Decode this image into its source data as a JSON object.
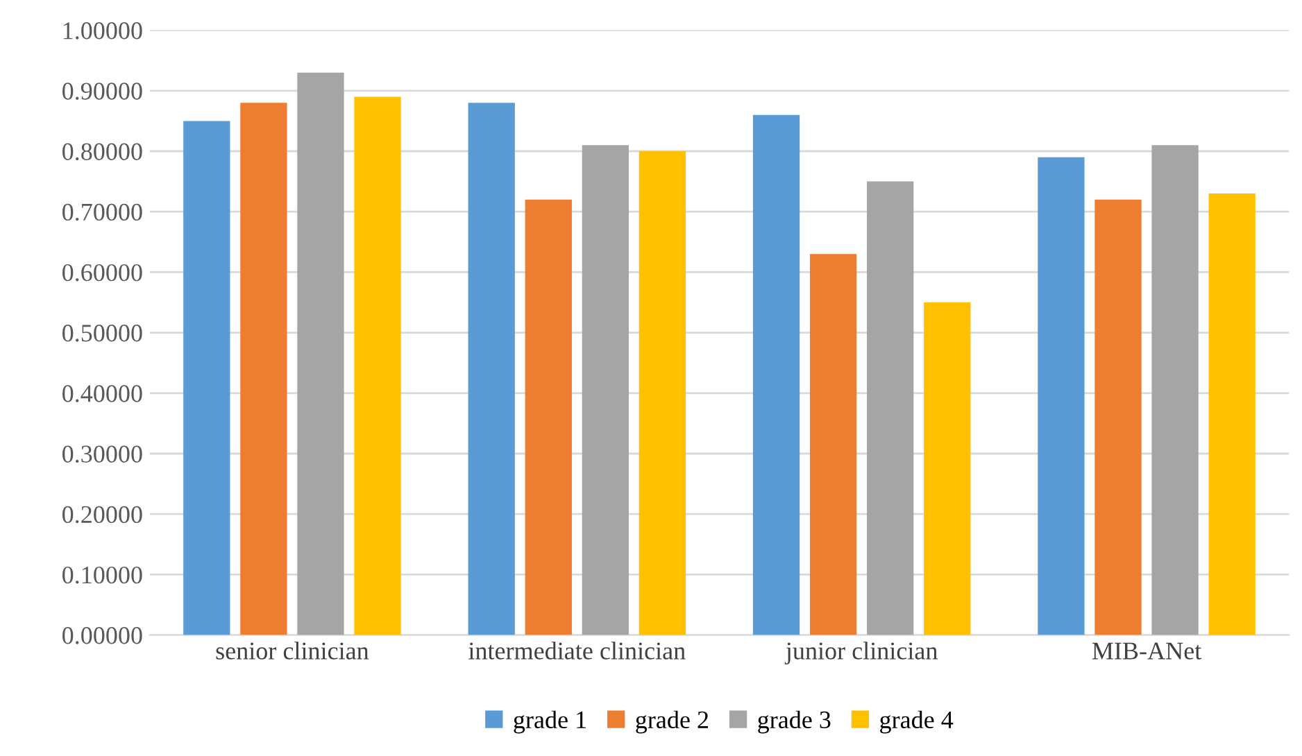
{
  "chart_data": {
    "type": "bar",
    "categories": [
      "senior clinician",
      "intermediate clinician",
      "junior clinician",
      "MIB-ANet"
    ],
    "series": [
      {
        "name": "grade 1",
        "color": "#5b9bd5",
        "values": [
          0.85,
          0.88,
          0.86,
          0.79
        ]
      },
      {
        "name": "grade 2",
        "color": "#ed7d31",
        "values": [
          0.88,
          0.72,
          0.63,
          0.72
        ]
      },
      {
        "name": "grade 3",
        "color": "#a5a5a5",
        "values": [
          0.93,
          0.81,
          0.75,
          0.81
        ]
      },
      {
        "name": "grade 4",
        "color": "#ffc000",
        "values": [
          0.89,
          0.8,
          0.55,
          0.73
        ]
      }
    ],
    "ylim": [
      0,
      1
    ],
    "yticks": [
      {
        "value": 0,
        "label": "0.00000"
      },
      {
        "value": 0.1,
        "label": "0.10000"
      },
      {
        "value": 0.2,
        "label": "0.20000"
      },
      {
        "value": 0.3,
        "label": "0.30000"
      },
      {
        "value": 0.4,
        "label": "0.40000"
      },
      {
        "value": 0.5,
        "label": "0.50000"
      },
      {
        "value": 0.6,
        "label": "0.60000"
      },
      {
        "value": 0.7,
        "label": "0.70000"
      },
      {
        "value": 0.8,
        "label": "0.80000"
      },
      {
        "value": 0.9,
        "label": "0.90000"
      },
      {
        "value": 1,
        "label": "1.00000"
      }
    ],
    "grid": "y",
    "legend": "bottom"
  }
}
